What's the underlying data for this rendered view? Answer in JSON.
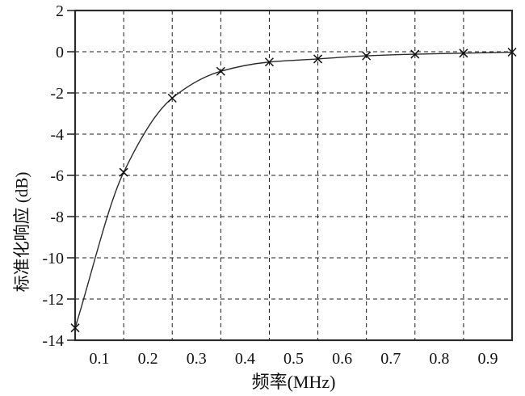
{
  "chart_data": {
    "type": "line",
    "title": "",
    "xlabel": "频率(MHz)",
    "ylabel": "标准化响应 (dB)",
    "xlim": [
      0.05,
      0.95
    ],
    "ylim": [
      -14,
      2
    ],
    "x_tick_values": [
      0.1,
      0.2,
      0.3,
      0.4,
      0.5,
      0.6,
      0.7,
      0.8,
      0.9
    ],
    "x_tick_labels": [
      "0.1",
      "0.2",
      "0.3",
      "0.4",
      "0.5",
      "0.6",
      "0.7",
      "0.8",
      "0.9"
    ],
    "y_tick_values": [
      2,
      0,
      -2,
      -4,
      -6,
      -8,
      -10,
      -12,
      -14
    ],
    "y_tick_labels": [
      "2",
      "0",
      "-2",
      "-4",
      "-6",
      "-8",
      "-10",
      "-12",
      "-14"
    ],
    "grid_x": [
      0.15,
      0.25,
      0.35,
      0.45,
      0.55,
      0.65,
      0.75,
      0.85
    ],
    "grid_y": [
      0,
      -2,
      -4,
      -6,
      -8,
      -10,
      -12
    ],
    "grid_style": "dashed",
    "legend": "none",
    "series": [
      {
        "name": "normalized-response",
        "marker": "x",
        "x": [
          0.05,
          0.15,
          0.25,
          0.35,
          0.45,
          0.55,
          0.65,
          0.75,
          0.85,
          0.95
        ],
        "y": [
          -13.4,
          -5.85,
          -2.25,
          -0.95,
          -0.5,
          -0.35,
          -0.2,
          -0.12,
          -0.07,
          -0.02
        ]
      }
    ],
    "colors": {
      "background": "#ffffff",
      "frame": "#2b2b2b",
      "grid": "#1c1c1c",
      "line": "#2b2b2b",
      "text": "#111111"
    }
  }
}
